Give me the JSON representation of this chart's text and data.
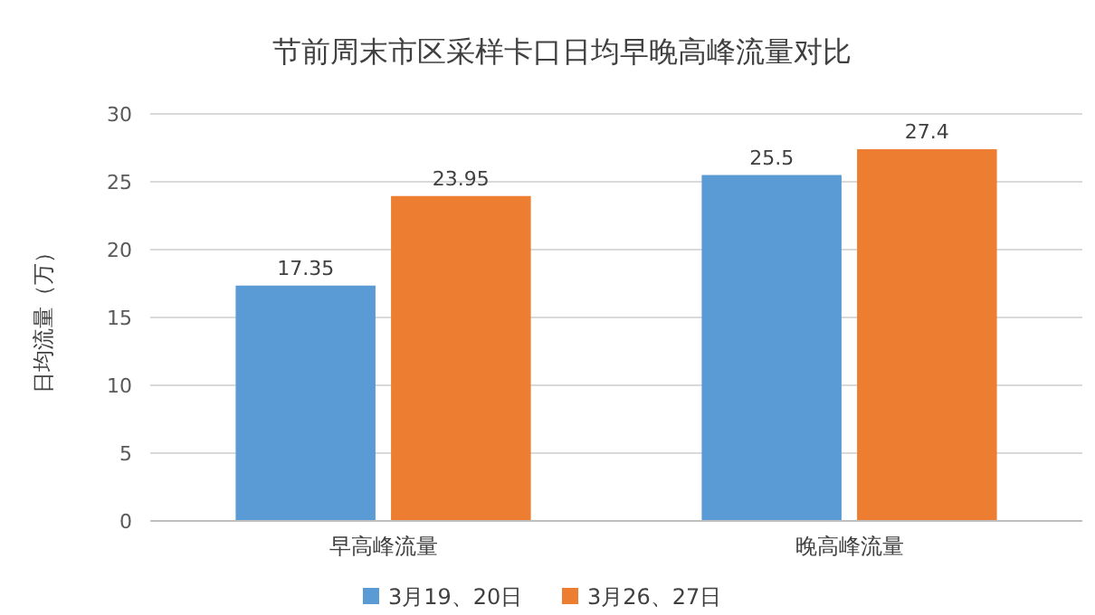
{
  "chart_data": {
    "type": "bar",
    "title": "节前周末市区采样卡口日均早晚高峰流量对比",
    "ylabel": "日均流量（万）",
    "categories": [
      "早高峰流量",
      "晚高峰流量"
    ],
    "series": [
      {
        "name": "3月19、20日",
        "color": "#5b9bd5",
        "values": [
          17.35,
          25.5
        ]
      },
      {
        "name": "3月26、27日",
        "color": "#ed7d31",
        "values": [
          23.95,
          27.4
        ]
      }
    ],
    "ylim": [
      0,
      30
    ],
    "yticks": [
      0,
      5,
      10,
      15,
      20,
      25,
      30
    ],
    "grid": "y",
    "legend": "bottom",
    "data_labels": true
  }
}
